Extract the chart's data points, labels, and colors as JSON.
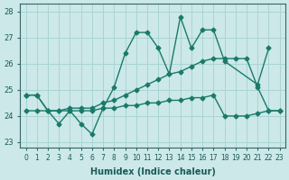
{
  "xlabel": "Humidex (Indice chaleur)",
  "ylabel": "",
  "xlim": [
    -0.5,
    23.5
  ],
  "ylim": [
    22.8,
    28.3
  ],
  "yticks": [
    23,
    24,
    25,
    26,
    27,
    28
  ],
  "xticks": [
    0,
    1,
    2,
    3,
    4,
    5,
    6,
    7,
    8,
    9,
    10,
    11,
    12,
    13,
    14,
    15,
    16,
    17,
    18,
    19,
    20,
    21,
    22,
    23
  ],
  "bg_color": "#cce8e8",
  "grid_color": "#aad4d4",
  "line_color": "#1a7a6a",
  "series": {
    "line1": [
      24.8,
      24.8,
      24.2,
      23.7,
      24.2,
      23.7,
      23.3,
      24.3,
      null,
      null,
      null,
      null,
      null,
      null,
      null,
      null,
      null,
      null,
      null,
      null,
      null,
      null,
      null,
      null
    ],
    "line2": [
      24.8,
      24.8,
      24.2,
      23.7,
      24.2,
      23.7,
      23.3,
      24.3,
      25.1,
      26.4,
      27.2,
      27.2,
      26.6,
      25.6,
      27.8,
      26.6,
      27.3,
      27.3,
      26.1,
      null,
      null,
      25.2,
      26.6,
      null
    ],
    "line3": [
      24.8,
      24.8,
      24.2,
      24.2,
      24.3,
      24.3,
      24.3,
      24.5,
      24.6,
      24.8,
      25.0,
      25.2,
      25.4,
      25.6,
      25.7,
      25.9,
      26.1,
      26.2,
      26.2,
      26.2,
      26.2,
      25.1,
      24.2,
      24.2
    ],
    "line4": [
      24.2,
      24.2,
      24.2,
      24.2,
      24.2,
      24.2,
      24.2,
      24.3,
      24.3,
      24.4,
      24.4,
      24.5,
      24.5,
      24.6,
      24.6,
      24.7,
      24.7,
      24.8,
      24.0,
      24.0,
      24.0,
      24.1,
      24.2,
      24.2
    ]
  }
}
